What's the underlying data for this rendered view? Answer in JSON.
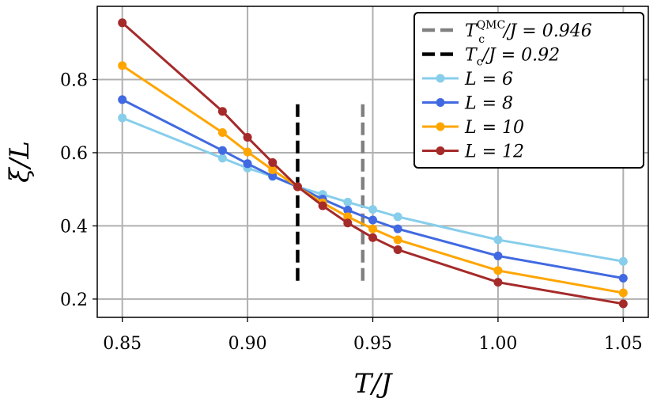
{
  "chart_data": {
    "type": "line",
    "title": "",
    "xlabel": "T/J",
    "ylabel": "ξ/L",
    "xlim": [
      0.84,
      1.06
    ],
    "ylim": [
      0.15,
      1.0
    ],
    "xticks": [
      0.85,
      0.9,
      0.95,
      1.0,
      1.05
    ],
    "xtick_labels": [
      "0.85",
      "0.90",
      "0.95",
      "1.00",
      "1.05"
    ],
    "yticks": [
      0.2,
      0.4,
      0.6,
      0.8
    ],
    "ytick_labels": [
      "0.2",
      "0.4",
      "0.6",
      "0.8"
    ],
    "grid": true,
    "legend_position": "top-right",
    "vlines": [
      {
        "name": "T_c^QMC/J = 0.946",
        "label_main": "T",
        "label_sub": "c",
        "label_sup": "QMC",
        "label_rest": "/J = 0.946",
        "x": 0.946,
        "y_range": [
          0.25,
          0.74
        ],
        "color": "#808080",
        "style": "dashed"
      },
      {
        "name": "T_c/J = 0.92",
        "label_main": "T",
        "label_sub": "c",
        "label_sup": "",
        "label_rest": "/J = 0.92",
        "x": 0.92,
        "y_range": [
          0.25,
          0.74
        ],
        "color": "#000000",
        "style": "dashed"
      }
    ],
    "series": [
      {
        "name": "L = 6",
        "label": "L = 6",
        "color": "#87ceeb",
        "x": [
          0.85,
          0.89,
          0.9,
          0.91,
          0.92,
          0.93,
          0.94,
          0.95,
          0.96,
          1.0,
          1.05
        ],
        "y": [
          0.695,
          0.585,
          0.558,
          0.535,
          0.507,
          0.486,
          0.465,
          0.445,
          0.425,
          0.362,
          0.303
        ]
      },
      {
        "name": "L = 8",
        "label": "L = 8",
        "color": "#4169e1",
        "x": [
          0.85,
          0.89,
          0.9,
          0.91,
          0.92,
          0.93,
          0.94,
          0.95,
          0.96,
          1.0,
          1.05
        ],
        "y": [
          0.745,
          0.606,
          0.57,
          0.536,
          0.507,
          0.473,
          0.443,
          0.416,
          0.392,
          0.318,
          0.257
        ]
      },
      {
        "name": "L = 10",
        "label": "L = 10",
        "color": "#ffa500",
        "x": [
          0.85,
          0.89,
          0.9,
          0.91,
          0.92,
          0.93,
          0.94,
          0.95,
          0.96,
          1.0,
          1.05
        ],
        "y": [
          0.838,
          0.655,
          0.602,
          0.553,
          0.507,
          0.463,
          0.425,
          0.392,
          0.362,
          0.278,
          0.217
        ]
      },
      {
        "name": "L = 12",
        "label": "L = 12",
        "color": "#a52a2a",
        "x": [
          0.85,
          0.89,
          0.9,
          0.91,
          0.92,
          0.93,
          0.94,
          0.95,
          0.96,
          1.0,
          1.05
        ],
        "y": [
          0.955,
          0.713,
          0.642,
          0.573,
          0.507,
          0.455,
          0.408,
          0.368,
          0.335,
          0.246,
          0.187
        ]
      }
    ]
  }
}
